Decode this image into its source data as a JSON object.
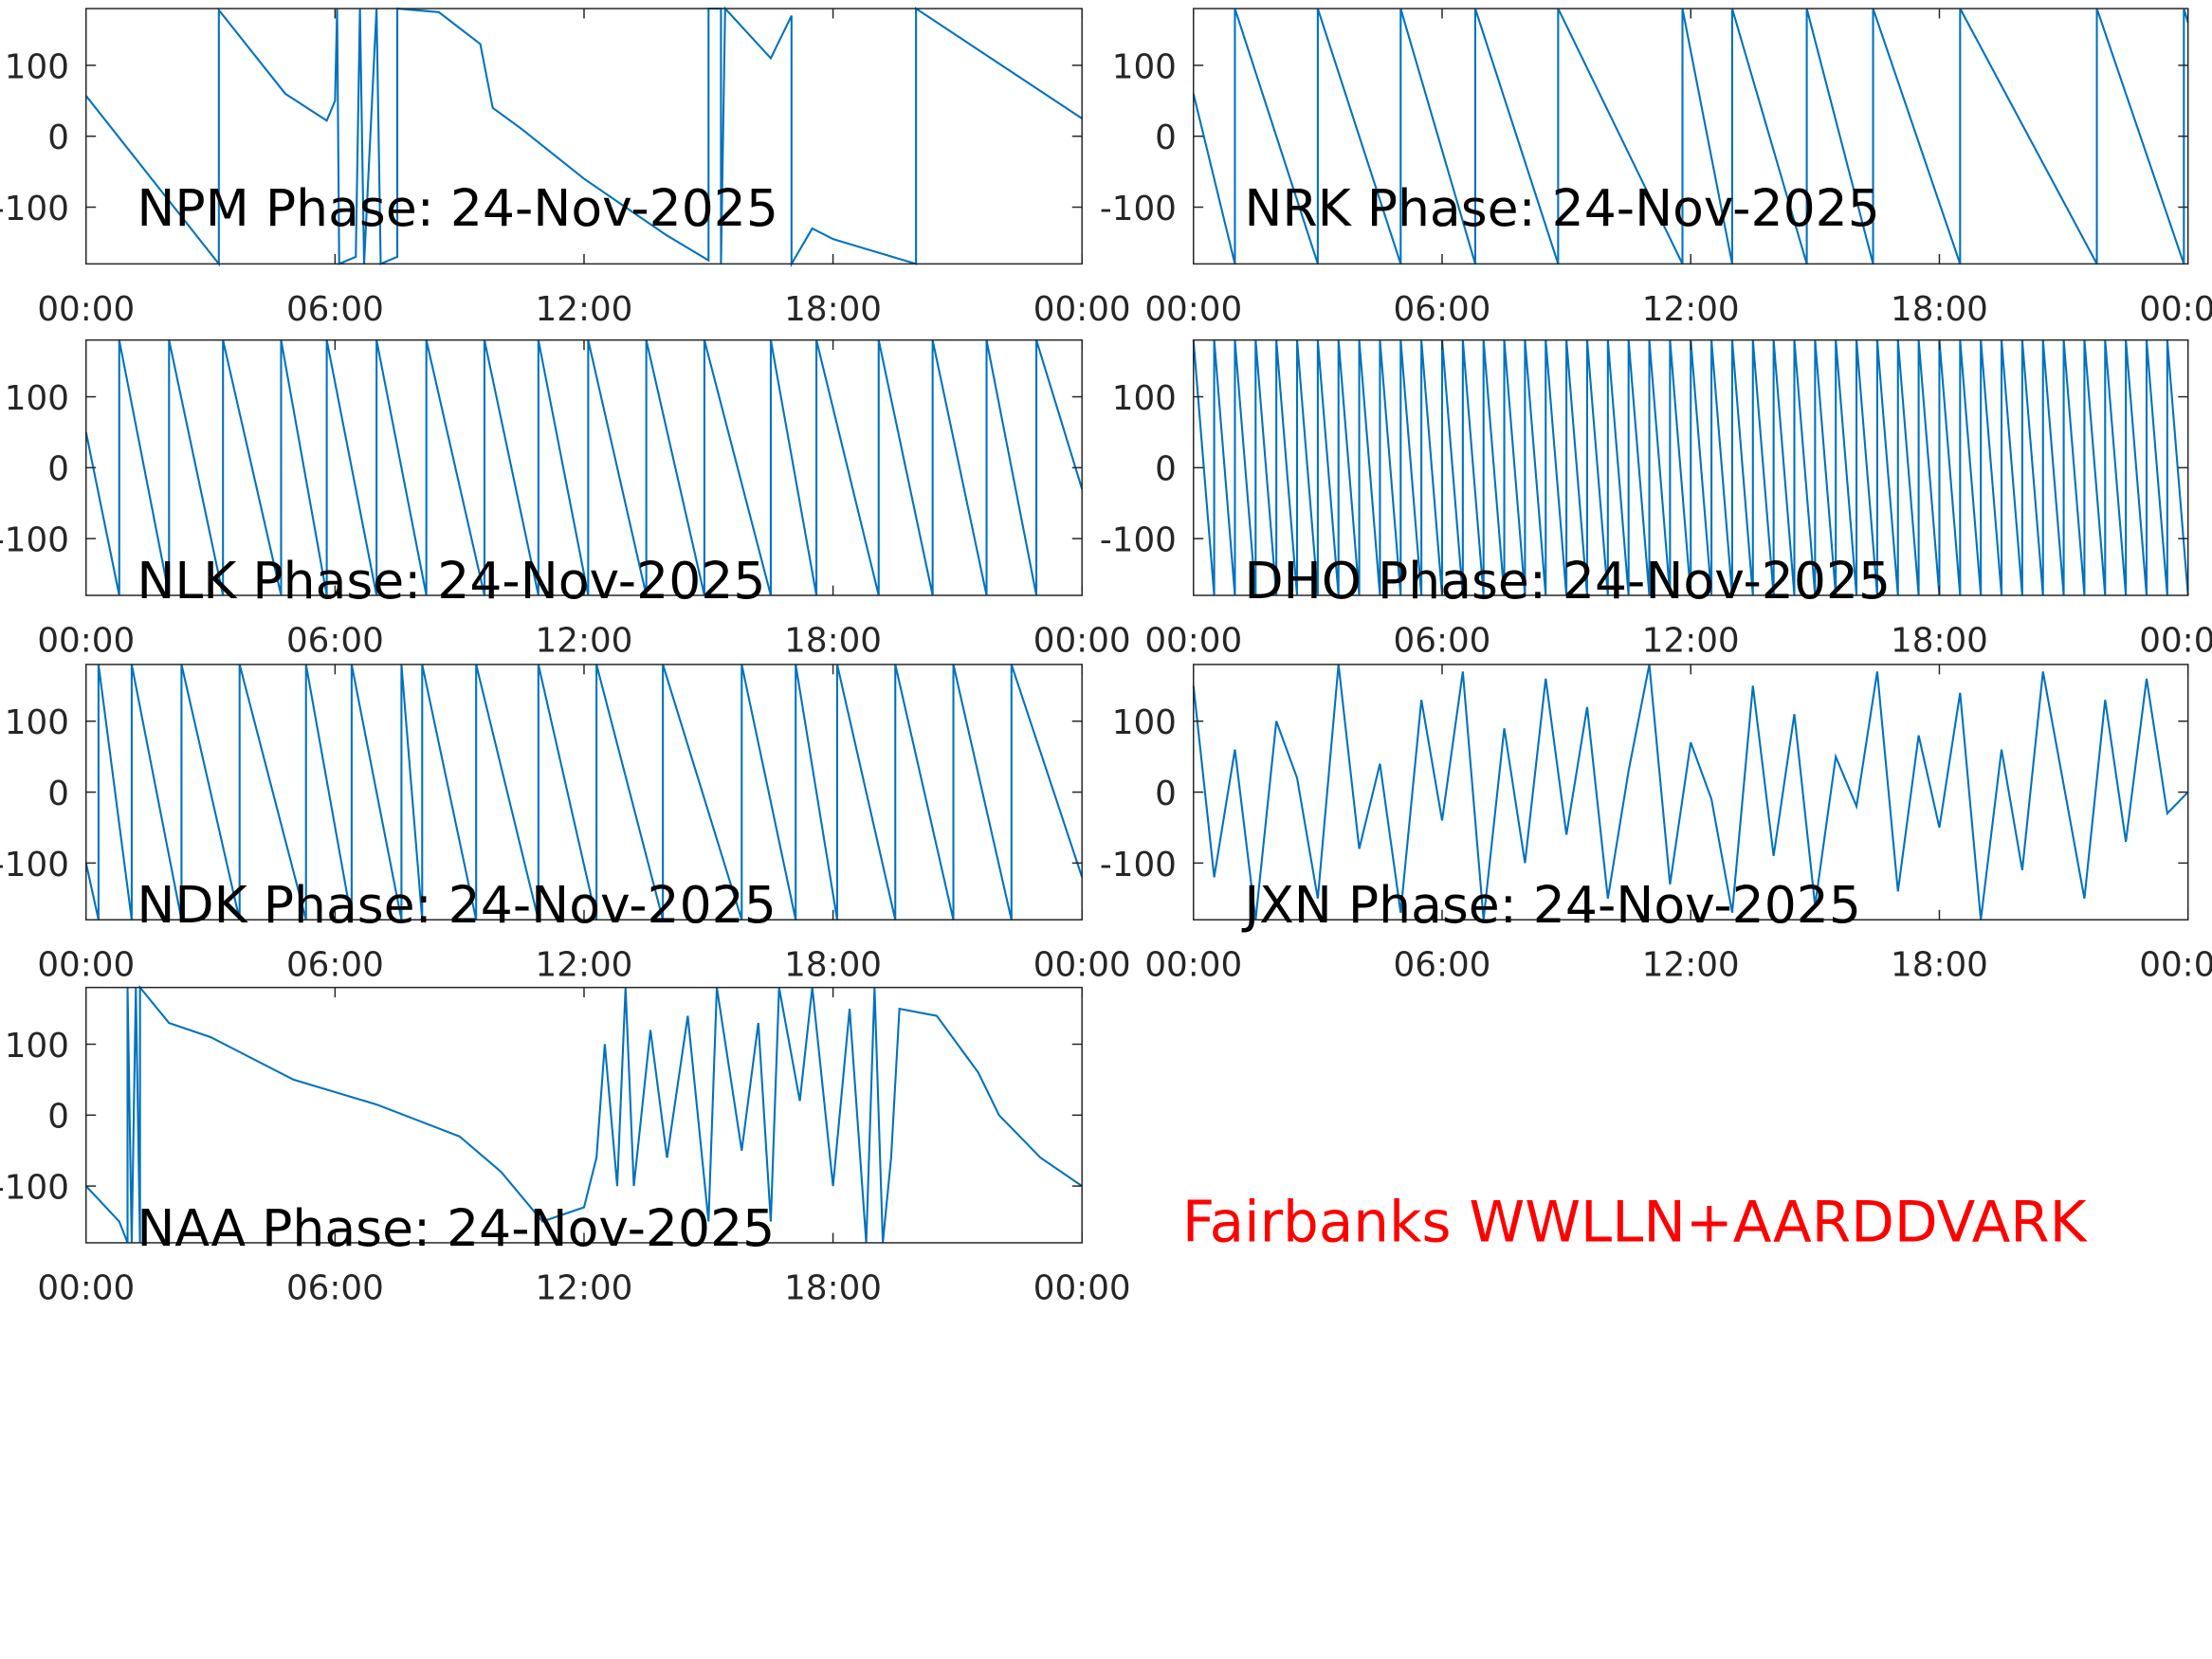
{
  "caption": "Fairbanks WWLLN+AARDDVARK",
  "chart_data": [
    {
      "type": "line",
      "title": "NPM Phase: 24-Nov-2025",
      "color": "#0072bd",
      "xlim": [
        0,
        24
      ],
      "ylim": [
        -180,
        180
      ],
      "yticks": [
        -100,
        0,
        100
      ],
      "xticks": [
        {
          "value": 0,
          "label": "00:00"
        },
        {
          "value": 6,
          "label": "06:00"
        },
        {
          "value": 12,
          "label": "12:00"
        },
        {
          "value": 18,
          "label": "18:00"
        },
        {
          "value": 24,
          "label": "00:00"
        }
      ],
      "x": [
        0,
        3.2,
        3.2,
        4.8,
        5.8,
        6,
        6.05,
        6.1,
        6.5,
        6.6,
        6.7,
        7,
        7.1,
        7.5,
        7.5,
        8.5,
        9.5,
        9.8,
        10.5,
        12,
        14,
        15,
        15,
        15.3,
        15.3,
        15.4,
        16.5,
        17,
        17,
        17.5,
        18,
        20,
        20,
        24
      ],
      "values": [
        57,
        -180,
        178,
        60,
        22,
        50,
        180,
        -180,
        -170,
        180,
        -180,
        180,
        -180,
        -170,
        180,
        175,
        130,
        40,
        10,
        -60,
        -140,
        -175,
        180,
        180,
        -180,
        180,
        110,
        170,
        -180,
        -130,
        -145,
        -180,
        180,
        25
      ]
    },
    {
      "type": "line",
      "title": "NRK Phase: 24-Nov-2025",
      "color": "#0072bd",
      "xlim": [
        0,
        24
      ],
      "ylim": [
        -180,
        180
      ],
      "yticks": [
        -100,
        0,
        100
      ],
      "xticks": [
        {
          "value": 0,
          "label": "00:00"
        },
        {
          "value": 6,
          "label": "06:00"
        },
        {
          "value": 12,
          "label": "12:00"
        },
        {
          "value": 18,
          "label": "18:00"
        },
        {
          "value": 24,
          "label": "00:00"
        }
      ],
      "x": [
        0,
        1,
        1,
        3,
        3,
        5,
        5,
        6.8,
        6.8,
        8.8,
        8.8,
        11.8,
        11.8,
        13,
        13,
        14.8,
        14.8,
        16.4,
        16.4,
        18.5,
        18.5,
        21.8,
        21.8,
        23.9,
        23.9,
        24
      ],
      "values": [
        60,
        -180,
        180,
        -180,
        180,
        -180,
        180,
        -180,
        180,
        -180,
        180,
        -180,
        180,
        -180,
        180,
        -180,
        180,
        -180,
        180,
        -180,
        180,
        -180,
        180,
        -180,
        180,
        160
      ]
    },
    {
      "type": "line",
      "title": "NLK Phase: 24-Nov-2025",
      "color": "#0072bd",
      "xlim": [
        0,
        24
      ],
      "ylim": [
        -180,
        180
      ],
      "yticks": [
        -100,
        0,
        100
      ],
      "xticks": [
        {
          "value": 0,
          "label": "00:00"
        },
        {
          "value": 6,
          "label": "06:00"
        },
        {
          "value": 12,
          "label": "12:00"
        },
        {
          "value": 18,
          "label": "18:00"
        },
        {
          "value": 24,
          "label": "00:00"
        }
      ],
      "x": [
        0,
        0.8,
        0.8,
        2,
        2,
        3.3,
        3.3,
        4.7,
        4.7,
        5.8,
        5.8,
        7,
        7,
        8.2,
        8.2,
        9.6,
        9.6,
        10.9,
        10.9,
        12.1,
        12.1,
        13.5,
        13.5,
        14.9,
        14.9,
        16.5,
        16.5,
        17.6,
        17.6,
        19.1,
        19.1,
        20.4,
        20.4,
        21.7,
        21.7,
        22.9,
        22.9,
        24
      ],
      "values": [
        50,
        -180,
        180,
        -180,
        180,
        -180,
        180,
        -180,
        180,
        -180,
        180,
        -180,
        180,
        -180,
        180,
        -180,
        180,
        -180,
        180,
        -180,
        180,
        -180,
        180,
        -180,
        180,
        -180,
        180,
        -180,
        180,
        -180,
        180,
        -180,
        180,
        -180,
        180,
        -180,
        180,
        -30
      ]
    },
    {
      "type": "line",
      "title": "DHO Phase: 24-Nov-2025",
      "color": "#0072bd",
      "xlim": [
        0,
        24
      ],
      "ylim": [
        -180,
        180
      ],
      "yticks": [
        -100,
        0,
        100
      ],
      "xticks": [
        {
          "value": 0,
          "label": "00:00"
        },
        {
          "value": 6,
          "label": "06:00"
        },
        {
          "value": 12,
          "label": "12:00"
        },
        {
          "value": 18,
          "label": "18:00"
        },
        {
          "value": 24,
          "label": "00:00"
        }
      ],
      "x": [
        0,
        0.5,
        0.5,
        1,
        1,
        1.5,
        1.5,
        2,
        2,
        2.5,
        2.5,
        3,
        3,
        3.5,
        3.5,
        4,
        4,
        4.5,
        4.5,
        5,
        5,
        5.5,
        5.5,
        6,
        6,
        6.5,
        6.5,
        7,
        7,
        7.5,
        7.5,
        8,
        8,
        8.5,
        8.5,
        9,
        9,
        9.5,
        9.5,
        10,
        10,
        10.5,
        10.5,
        11,
        11,
        11.5,
        11.5,
        12,
        12,
        12.5,
        12.5,
        13,
        13,
        13.5,
        13.5,
        14,
        14,
        14.5,
        14.5,
        15,
        15,
        15.5,
        15.5,
        16,
        16,
        16.5,
        16.5,
        17,
        17,
        17.5,
        17.5,
        18,
        18,
        18.5,
        18.5,
        19,
        19,
        19.5,
        19.5,
        20,
        20,
        20.5,
        20.5,
        21,
        21,
        21.5,
        21.5,
        22,
        22,
        22.5,
        22.5,
        23,
        23,
        23.5,
        23.5,
        24
      ],
      "values": [
        180,
        -180,
        180,
        -180,
        180,
        -180,
        180,
        -180,
        180,
        -180,
        180,
        -180,
        180,
        -180,
        180,
        -180,
        180,
        -180,
        180,
        -180,
        180,
        -180,
        180,
        -180,
        180,
        -180,
        180,
        -180,
        180,
        -180,
        180,
        -180,
        180,
        -180,
        180,
        -180,
        180,
        -180,
        180,
        -180,
        180,
        -180,
        180,
        -180,
        180,
        -180,
        180,
        -180,
        180,
        -180,
        180,
        -180,
        180,
        -180,
        180,
        -180,
        180,
        -180,
        180,
        -180,
        180,
        -180,
        180,
        -180,
        180,
        -180,
        180,
        -180,
        180,
        -180,
        180,
        -180,
        180,
        -180,
        180,
        -180,
        180,
        -180,
        180,
        -180,
        180,
        -180,
        180,
        -180,
        180,
        -180,
        180,
        -180,
        180,
        -180,
        180,
        -180,
        180,
        -180,
        180,
        -180
      ]
    },
    {
      "type": "line",
      "title": "NDK Phase: 24-Nov-2025",
      "color": "#0072bd",
      "xlim": [
        0,
        24
      ],
      "ylim": [
        -180,
        180
      ],
      "yticks": [
        -100,
        0,
        100
      ],
      "xticks": [
        {
          "value": 0,
          "label": "00:00"
        },
        {
          "value": 6,
          "label": "06:00"
        },
        {
          "value": 12,
          "label": "12:00"
        },
        {
          "value": 18,
          "label": "18:00"
        },
        {
          "value": 24,
          "label": "00:00"
        }
      ],
      "x": [
        0,
        0.3,
        0.3,
        1.1,
        1.1,
        2.3,
        2.3,
        3.7,
        3.7,
        5.3,
        5.3,
        6.4,
        6.4,
        7.6,
        7.6,
        8.1,
        8.1,
        9.4,
        9.4,
        10.9,
        10.9,
        12.3,
        12.3,
        13.9,
        13.9,
        15.8,
        15.8,
        17.1,
        17.1,
        18.1,
        18.1,
        19.5,
        19.5,
        20.9,
        20.9,
        22.3,
        22.3,
        24
      ],
      "values": [
        -100,
        -180,
        180,
        -180,
        180,
        -180,
        180,
        -180,
        180,
        -180,
        180,
        -180,
        180,
        -180,
        180,
        -180,
        180,
        -180,
        180,
        -180,
        180,
        -180,
        180,
        -180,
        180,
        -180,
        180,
        -180,
        180,
        -180,
        180,
        -180,
        180,
        -180,
        180,
        -180,
        180,
        -120
      ]
    },
    {
      "type": "line",
      "title": "JXN Phase: 24-Nov-2025",
      "color": "#0072bd",
      "xlim": [
        0,
        24
      ],
      "ylim": [
        -180,
        180
      ],
      "yticks": [
        -100,
        0,
        100
      ],
      "xticks": [
        {
          "value": 0,
          "label": "00:00"
        },
        {
          "value": 6,
          "label": "06:00"
        },
        {
          "value": 12,
          "label": "12:00"
        },
        {
          "value": 18,
          "label": "18:00"
        },
        {
          "value": 24,
          "label": "00:00"
        }
      ],
      "x": [
        0,
        0.5,
        1,
        1.5,
        2,
        2.5,
        3,
        3.5,
        4,
        4.5,
        5,
        5.5,
        6,
        6.5,
        7,
        7.5,
        8,
        8.5,
        9,
        9.5,
        10,
        10.5,
        11,
        11.5,
        12,
        12.5,
        13,
        13.5,
        14,
        14.5,
        15,
        15.5,
        16,
        16.5,
        17,
        17.5,
        18,
        18.5,
        19,
        19.5,
        20,
        20.5,
        21,
        21.5,
        22,
        22.5,
        23,
        23.5,
        24
      ],
      "values": [
        150,
        -120,
        60,
        -180,
        100,
        20,
        -150,
        180,
        -80,
        40,
        -170,
        130,
        -40,
        170,
        -180,
        90,
        -100,
        160,
        -60,
        120,
        -150,
        30,
        180,
        -130,
        70,
        -10,
        -170,
        150,
        -90,
        110,
        -160,
        50,
        -20,
        170,
        -140,
        80,
        -50,
        140,
        -180,
        60,
        -110,
        170,
        10,
        -150,
        130,
        -70,
        160,
        -30,
        0
      ]
    },
    {
      "type": "line",
      "title": "NAA Phase: 24-Nov-2025",
      "color": "#0072bd",
      "xlim": [
        0,
        24
      ],
      "ylim": [
        -180,
        180
      ],
      "yticks": [
        -100,
        0,
        100
      ],
      "xticks": [
        {
          "value": 0,
          "label": "00:00"
        },
        {
          "value": 6,
          "label": "06:00"
        },
        {
          "value": 12,
          "label": "12:00"
        },
        {
          "value": 18,
          "label": "18:00"
        },
        {
          "value": 24,
          "label": "00:00"
        }
      ],
      "x": [
        0,
        0.8,
        1,
        1,
        1.1,
        1.2,
        1.3,
        1.3,
        2,
        3,
        5,
        7,
        9,
        10,
        11,
        12,
        12.3,
        12.5,
        12.8,
        13,
        13.2,
        13.6,
        14,
        14.5,
        15,
        15.2,
        15.8,
        16.2,
        16.5,
        16.7,
        17.2,
        17.5,
        18,
        18.4,
        18.8,
        19,
        19.2,
        19.4,
        19.6,
        20.5,
        21.5,
        22,
        23,
        24
      ],
      "values": [
        -100,
        -150,
        -180,
        180,
        -180,
        180,
        -180,
        180,
        130,
        110,
        50,
        15,
        -30,
        -80,
        -150,
        -130,
        -60,
        100,
        -100,
        180,
        -100,
        120,
        -60,
        140,
        -150,
        180,
        -50,
        130,
        -150,
        180,
        20,
        180,
        -100,
        150,
        -180,
        180,
        -180,
        -60,
        150,
        140,
        60,
        0,
        -60,
        -100
      ]
    }
  ]
}
